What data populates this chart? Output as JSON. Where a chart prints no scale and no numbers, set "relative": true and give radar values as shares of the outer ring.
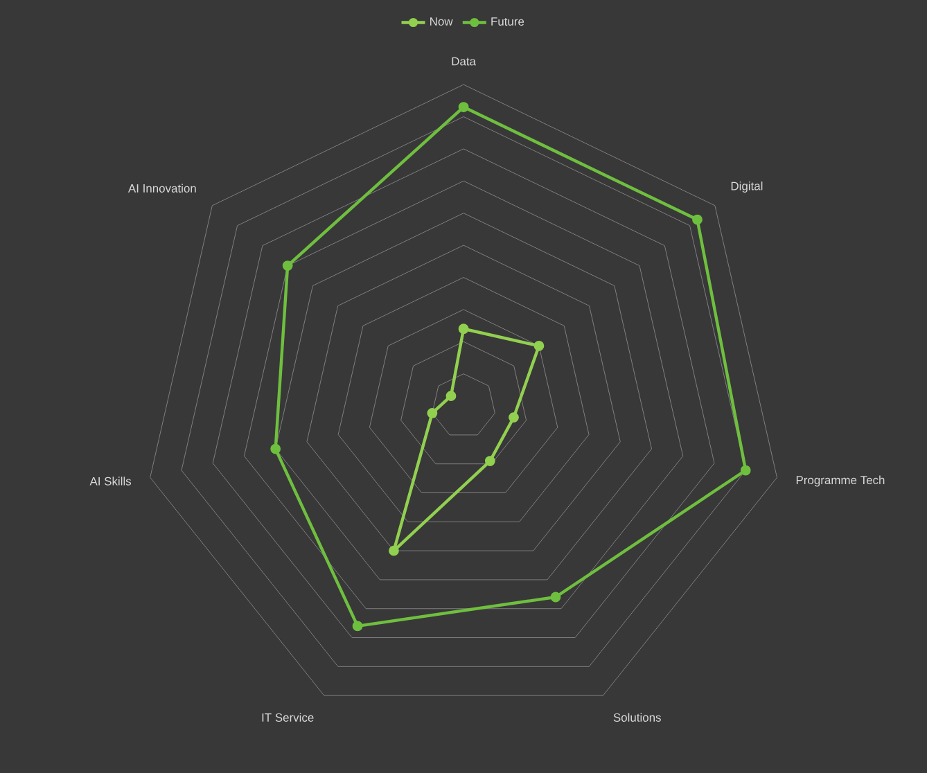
{
  "chart_data": {
    "type": "radar",
    "relative": true,
    "categories": [
      "Data",
      "Digital",
      "Programme Tech",
      "Solutions",
      "IT Service",
      "AI Skills",
      "AI Innovation"
    ],
    "series": [
      {
        "name": "Now",
        "color": "#92d050",
        "values": [
          0.24,
          0.3,
          0.16,
          0.19,
          0.5,
          0.1,
          0.05
        ]
      },
      {
        "name": "Future",
        "color": "#6fbf3f",
        "values": [
          0.93,
          0.93,
          0.9,
          0.66,
          0.76,
          0.6,
          0.7
        ]
      }
    ],
    "grid": true,
    "legend": "top",
    "marker": "circle",
    "line_style": "solid"
  }
}
